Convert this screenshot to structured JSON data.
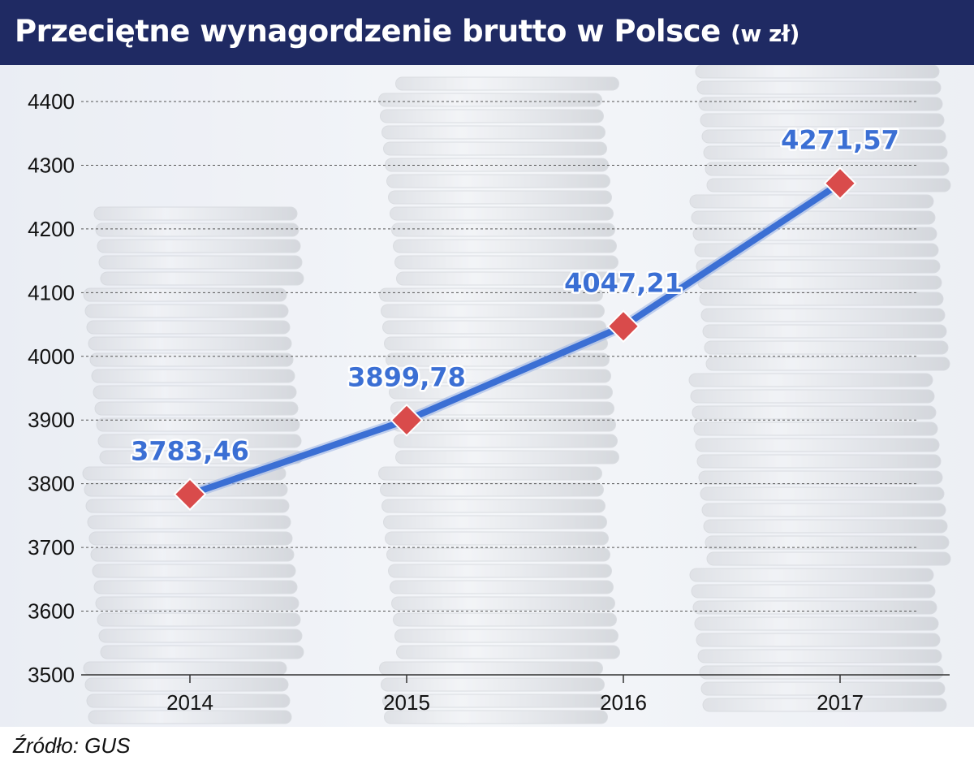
{
  "header": {
    "title_main": "Przeciętne wynagordzenie brutto w Polsce",
    "title_unit": "(w zł)",
    "background_color": "#1f2a63"
  },
  "footer": {
    "source": "Źródło: GUS"
  },
  "chart_data": {
    "type": "line",
    "title": "Przeciętne wynagordzenie brutto w Polsce (w zł)",
    "xlabel": "",
    "ylabel": "",
    "categories": [
      "2014",
      "2015",
      "2016",
      "2017"
    ],
    "series": [
      {
        "values": [
          3783.46,
          3899.78,
          4047.21,
          4271.57
        ],
        "labels": [
          "3783,46",
          "3899,78",
          "4047,21",
          "4271,57"
        ],
        "line_color": "#3b6fd4",
        "marker_color": "#d94b4b",
        "marker": "diamond"
      }
    ],
    "ylim": [
      3500,
      4400
    ],
    "yticks": [
      3500,
      3600,
      3700,
      3800,
      3900,
      4000,
      4100,
      4200,
      4300,
      4400
    ],
    "grid": true,
    "legend": "none"
  }
}
